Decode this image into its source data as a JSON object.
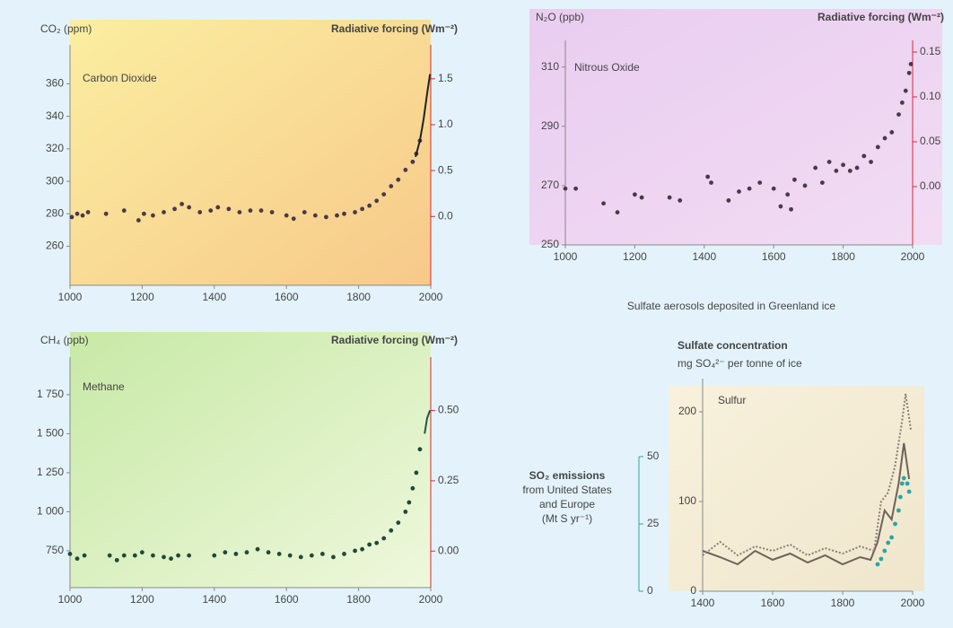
{
  "chart_data": [
    {
      "type": "scatter",
      "title": "Carbon Dioxide",
      "ylabel": "CO₂ (ppm)",
      "y2label": "Radiative forcing (Wm⁻²)",
      "xlim": [
        1000,
        2000
      ],
      "xticks": [
        1000,
        1200,
        1400,
        1600,
        1800,
        2000
      ],
      "ylim": [
        236,
        384
      ],
      "yticks": [
        260,
        280,
        300,
        320,
        340,
        360
      ],
      "y2lim": [
        -0.75,
        1.87
      ],
      "y2ticks": [
        {
          "value": 0,
          "label": "0.0"
        },
        0.5,
        {
          "value": 1,
          "label": "1.0"
        },
        1.5
      ],
      "series": [
        {
          "color": "#4a3a48",
          "style": "points",
          "x": [
            1005,
            1020,
            1035,
            1050,
            1100,
            1150,
            1190,
            1205,
            1230,
            1260,
            1290,
            1310,
            1330,
            1360,
            1390,
            1410,
            1440,
            1470,
            1500,
            1530,
            1560,
            1600,
            1620,
            1650,
            1680,
            1710,
            1740,
            1760,
            1790,
            1810,
            1830,
            1850,
            1870,
            1890,
            1910,
            1930,
            1950,
            1960,
            1970
          ],
          "values": [
            278,
            280,
            279,
            281,
            280,
            282,
            276,
            280,
            279,
            281,
            283,
            286,
            284,
            281,
            282,
            284,
            283,
            281,
            282,
            282,
            281,
            279,
            277,
            281,
            279,
            278,
            279,
            280,
            281,
            283,
            285,
            288,
            292,
            297,
            301,
            307,
            312,
            317,
            325
          ]
        },
        {
          "color": "#222222",
          "style": "line",
          "x": [
            1958,
            1970,
            1980,
            1990,
            1998
          ],
          "values": [
            315,
            325,
            338,
            354,
            366
          ]
        }
      ]
    },
    {
      "type": "scatter",
      "title": "Nitrous Oxide",
      "ylabel": "N₂O (ppb)",
      "y2label": "Radiative forcing (Wm⁻²)",
      "xlim": [
        1000,
        2000
      ],
      "xticks": [
        1000,
        1200,
        1400,
        1600,
        1800,
        2000
      ],
      "ylim": [
        250,
        319
      ],
      "yticks": [
        250,
        270,
        290,
        310
      ],
      "y2lim": [
        -0.065,
        0.163
      ],
      "y2ticks": [
        {
          "value": 0,
          "label": "0.00"
        },
        0.05,
        {
          "value": 0.1,
          "label": "0.10"
        },
        0.15
      ],
      "series": [
        {
          "color": "#4a3a48",
          "style": "points",
          "x": [
            1000,
            1030,
            1110,
            1150,
            1200,
            1220,
            1300,
            1330,
            1410,
            1420,
            1470,
            1500,
            1530,
            1560,
            1600,
            1620,
            1640,
            1650,
            1660,
            1690,
            1720,
            1740,
            1760,
            1780,
            1800,
            1820,
            1840,
            1860,
            1880,
            1900,
            1920,
            1940,
            1960,
            1970,
            1980,
            1990,
            1995
          ],
          "values": [
            269,
            269,
            264,
            261,
            267,
            266,
            266,
            265,
            273,
            271,
            265,
            268,
            269,
            271,
            269,
            263,
            267,
            262,
            272,
            270,
            276,
            271,
            278,
            275,
            277,
            275,
            276,
            280,
            278,
            283,
            286,
            288,
            294,
            298,
            302,
            308,
            311
          ]
        }
      ]
    },
    {
      "type": "scatter",
      "title": "Methane",
      "ylabel": "CH₄ (ppb)",
      "y2label": "Radiative forcing (Wm⁻²)",
      "xlim": [
        1000,
        2000
      ],
      "xticks": [
        1000,
        1200,
        1400,
        1600,
        1800,
        2000
      ],
      "ylim": [
        514,
        1991
      ],
      "yticks": [
        750,
        {
          "value": 1000,
          "label": "1 000"
        },
        {
          "value": 1250,
          "label": "1 250"
        },
        {
          "value": 1500,
          "label": "1 500"
        },
        {
          "value": 1750,
          "label": "1 750"
        }
      ],
      "y2lim": [
        -0.13,
        0.69
      ],
      "y2ticks": [
        {
          "value": 0,
          "label": "0.00"
        },
        0.25,
        {
          "value": 0.5,
          "label": "0.50"
        }
      ],
      "series": [
        {
          "color": "#1f4a3c",
          "style": "points",
          "x": [
            1000,
            1020,
            1040,
            1110,
            1130,
            1150,
            1180,
            1200,
            1230,
            1260,
            1280,
            1300,
            1330,
            1400,
            1430,
            1460,
            1490,
            1520,
            1550,
            1580,
            1610,
            1640,
            1670,
            1700,
            1730,
            1760,
            1790,
            1810,
            1830,
            1850,
            1870,
            1890,
            1910,
            1930,
            1940,
            1950,
            1960,
            1970
          ],
          "values": [
            730,
            700,
            720,
            720,
            690,
            720,
            720,
            740,
            720,
            710,
            700,
            720,
            720,
            720,
            740,
            730,
            740,
            760,
            740,
            730,
            720,
            710,
            720,
            730,
            710,
            730,
            750,
            760,
            790,
            800,
            830,
            880,
            930,
            1000,
            1060,
            1150,
            1250,
            1400
          ]
        },
        {
          "color": "#1f5a3c",
          "style": "line",
          "x": [
            1983,
            1990,
            1998
          ],
          "values": [
            1500,
            1600,
            1650
          ]
        }
      ]
    },
    {
      "type": "line",
      "heading": "Sulfate aerosols deposited in Greenland ice",
      "title": "Sulfur",
      "ylabel": "Sulfate concentration",
      "yunits": "mg SO₄²⁻ per tonne of ice",
      "y2label": [
        "SO₂ emissions",
        "from United States",
        "and Europe",
        "(Mt S yr⁻¹)"
      ],
      "xlim": [
        1400,
        2000
      ],
      "xticks": [
        1400,
        1600,
        1800,
        2000
      ],
      "ylim": [
        0,
        237
      ],
      "yticks": [
        0,
        100,
        200
      ],
      "y2lim": [
        0,
        79
      ],
      "y2ticks": [
        0,
        25,
        50
      ],
      "series": [
        {
          "color": "#6e625a",
          "style": "line",
          "dash": "none",
          "x": [
            1400,
            1450,
            1500,
            1550,
            1600,
            1650,
            1700,
            1750,
            1800,
            1850,
            1880,
            1900,
            1920,
            1940,
            1960,
            1975,
            1990
          ],
          "values": [
            45,
            38,
            30,
            45,
            35,
            42,
            32,
            40,
            30,
            38,
            35,
            55,
            90,
            80,
            120,
            165,
            125
          ]
        },
        {
          "color": "#8a7e74",
          "style": "line",
          "dash": "2 2",
          "x": [
            1400,
            1450,
            1500,
            1550,
            1600,
            1650,
            1700,
            1750,
            1800,
            1850,
            1890,
            1910,
            1930,
            1950,
            1970,
            1980,
            1995
          ],
          "values": [
            40,
            55,
            40,
            50,
            45,
            52,
            40,
            48,
            42,
            50,
            45,
            100,
            110,
            140,
            190,
            220,
            180
          ]
        },
        {
          "color": "#2aa6a6",
          "style": "points",
          "axis": "y2",
          "x": [
            1900,
            1910,
            1920,
            1930,
            1940,
            1950,
            1960,
            1965,
            1970,
            1975,
            1985,
            1990
          ],
          "values": [
            10,
            12,
            15,
            18,
            20,
            25,
            30,
            35,
            40,
            42,
            40,
            37
          ]
        }
      ]
    }
  ]
}
